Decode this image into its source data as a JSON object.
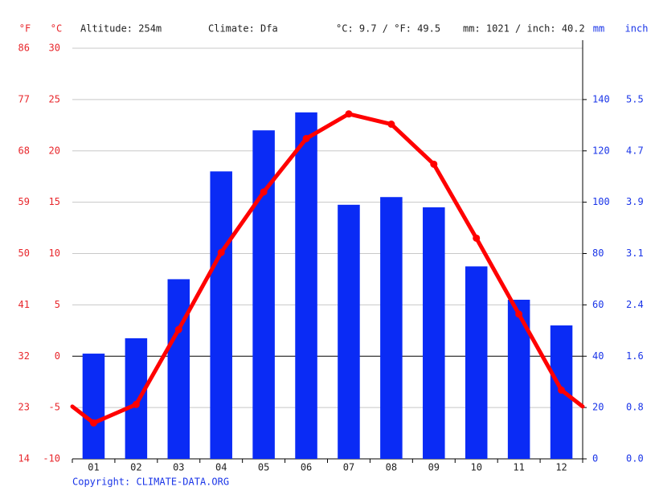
{
  "chart_data": {
    "type": "bar",
    "annotations": [
      "Altitude: 254m",
      "Climate: Dfa",
      "°C: 9.7 / °F: 49.5",
      "mm: 1021 / inch: 40.2"
    ],
    "ylabel": "°C",
    "ylabel_f": "°F",
    "y2label": "mm",
    "y2label_inch": "inch",
    "source": "Copyright: CLIMATE-DATA.ORG",
    "categories": [
      "01",
      "02",
      "03",
      "04",
      "05",
      "06",
      "07",
      "08",
      "09",
      "10",
      "11",
      "12"
    ],
    "series": [
      {
        "type": "bar",
        "axis": "y2",
        "color": "#0a2bf5",
        "values": [
          41,
          47,
          70,
          112,
          128,
          135,
          99,
          102,
          98,
          75,
          62,
          52
        ]
      },
      {
        "type": "line",
        "color": "#ff0000",
        "values": [
          -6.5,
          -4.7,
          2.6,
          10.1,
          16.0,
          21.2,
          23.6,
          22.6,
          18.7,
          11.5,
          4.1,
          -3.3
        ]
      }
    ],
    "ylim": [
      -10,
      30
    ],
    "yticks": [
      -10,
      -5,
      0,
      5,
      10,
      15,
      20,
      25,
      30
    ],
    "yticks_f": [
      {
        "value": -10,
        "label": "14"
      },
      {
        "value": -5,
        "label": "23"
      },
      {
        "value": 0,
        "label": "32"
      },
      {
        "value": 5,
        "label": "41"
      },
      {
        "value": 10,
        "label": "50"
      },
      {
        "value": 15,
        "label": "59"
      },
      {
        "value": 20,
        "label": "68"
      },
      {
        "value": 25,
        "label": "77"
      },
      {
        "value": 30,
        "label": "86"
      }
    ],
    "y2lim": [
      0,
      160
    ],
    "y2ticks": [
      0,
      20,
      40,
      60,
      80,
      100,
      120,
      140
    ],
    "y2ticks_inch": [
      {
        "value": 0,
        "label": "0.0"
      },
      {
        "value": 20,
        "label": "0.8"
      },
      {
        "value": 40,
        "label": "1.6"
      },
      {
        "value": 60,
        "label": "2.4"
      },
      {
        "value": 80,
        "label": "3.1"
      },
      {
        "value": 100,
        "label": "3.9"
      },
      {
        "value": 120,
        "label": "4.7"
      },
      {
        "value": 140,
        "label": "5.5"
      }
    ],
    "grid": true
  }
}
